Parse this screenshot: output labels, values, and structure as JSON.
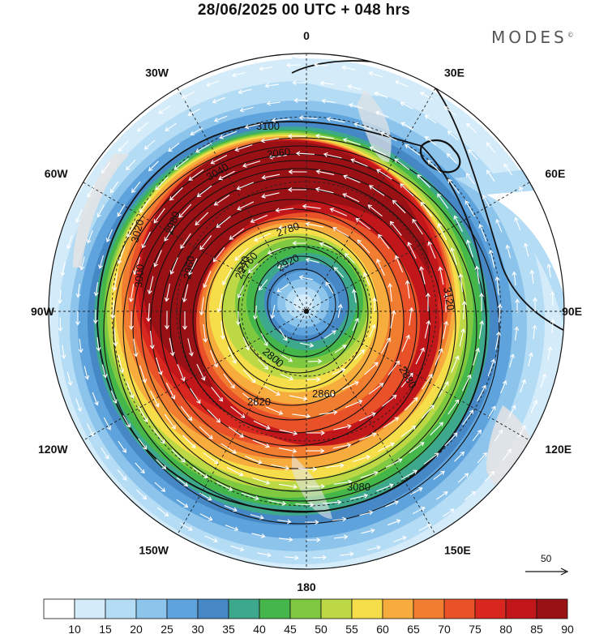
{
  "title": "28/06/2025  00 UTC  + 048 hrs",
  "brand": {
    "name": "MODES",
    "mark": "©"
  },
  "longitude_labels": [
    {
      "text": "0",
      "angle": 0
    },
    {
      "text": "30E",
      "angle": 30
    },
    {
      "text": "60E",
      "angle": 60
    },
    {
      "text": "90E",
      "angle": 90
    },
    {
      "text": "120E",
      "angle": 120
    },
    {
      "text": "150E",
      "angle": 150
    },
    {
      "text": "180",
      "angle": 180
    },
    {
      "text": "150W",
      "angle": 210
    },
    {
      "text": "120W",
      "angle": 240
    },
    {
      "text": "90W",
      "angle": 270
    },
    {
      "text": "60W",
      "angle": 300
    },
    {
      "text": "30W",
      "angle": 330
    }
  ],
  "contour_labels": [
    "3100",
    "3060",
    "3040",
    "3020",
    "3000",
    "2980",
    "2960",
    "2940",
    "2920",
    "2880",
    "2860",
    "2820",
    "2800",
    "2780",
    "2760",
    "3080",
    "3120"
  ],
  "colorbar": {
    "ticks": [
      "10",
      "15",
      "20",
      "25",
      "30",
      "35",
      "40",
      "45",
      "50",
      "55",
      "60",
      "65",
      "70",
      "75",
      "80",
      "85",
      "90"
    ],
    "colors": [
      "#ffffff",
      "#d4ecfa",
      "#b5dcf5",
      "#8cc4ec",
      "#5fa3dc",
      "#4688c6",
      "#3da88c",
      "#45b649",
      "#7fc941",
      "#bcd845",
      "#f6de4a",
      "#f7ad3d",
      "#f17d31",
      "#e95128",
      "#d9261e",
      "#c1161a",
      "#9a1115"
    ]
  },
  "reference_vector": {
    "label": "50"
  },
  "icons": [
    "north-pole-marker"
  ]
}
